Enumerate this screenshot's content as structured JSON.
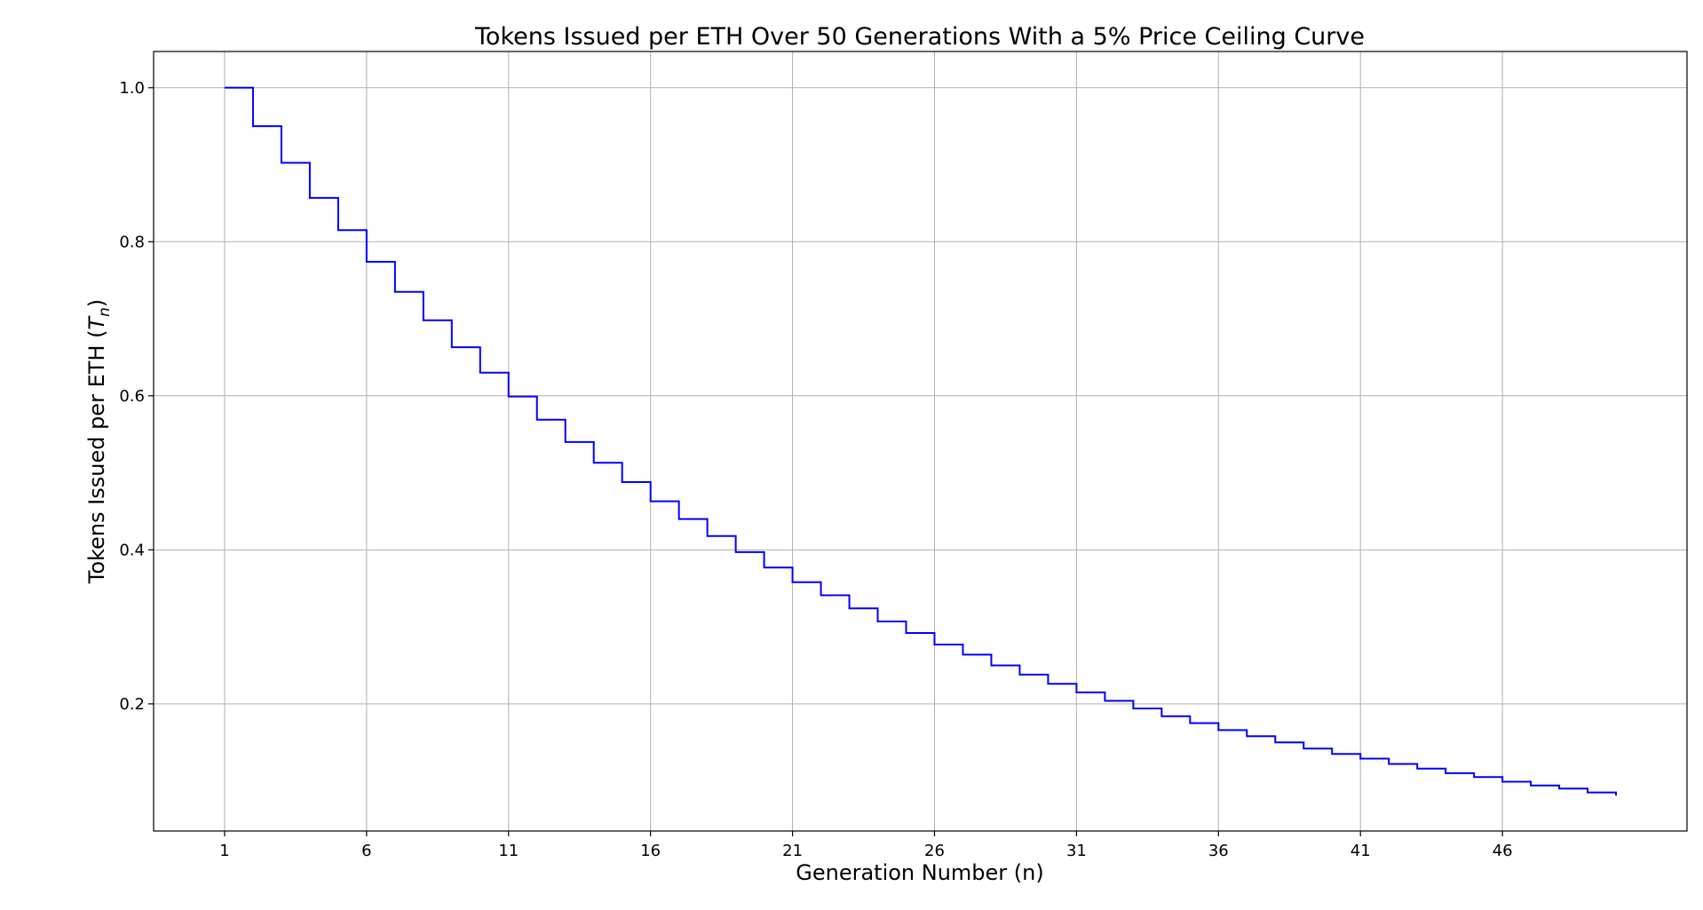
{
  "chart_data": {
    "type": "line",
    "drawstyle": "steps-post",
    "title": "Tokens Issued per ETH Over 50 Generations With a 5% Price Ceiling Curve",
    "xlabel": "Generation Number (n)",
    "ylabel_text": "Tokens Issued per ETH (",
    "ylabel_symbol": "T",
    "ylabel_subscript": "n",
    "ylabel_close": ")",
    "xlim": [
      -1.5,
      52.5
    ],
    "ylim": [
      0.035,
      1.047
    ],
    "x_ticks": [
      1,
      6,
      11,
      16,
      21,
      26,
      31,
      36,
      41,
      46
    ],
    "x_tick_labels": [
      "1",
      "6",
      "11",
      "16",
      "21",
      "26",
      "31",
      "36",
      "41",
      "46"
    ],
    "y_ticks": [
      0.2,
      0.4,
      0.6,
      0.8,
      1.0
    ],
    "y_tick_labels": [
      "0.2",
      "0.4",
      "0.6",
      "0.8",
      "1.0"
    ],
    "grid": true,
    "legend": "none",
    "series": [
      {
        "color": "#0000ff",
        "x": [
          1,
          2,
          3,
          4,
          5,
          6,
          7,
          8,
          9,
          10,
          11,
          12,
          13,
          14,
          15,
          16,
          17,
          18,
          19,
          20,
          21,
          22,
          23,
          24,
          25,
          26,
          27,
          28,
          29,
          30,
          31,
          32,
          33,
          34,
          35,
          36,
          37,
          38,
          39,
          40,
          41,
          42,
          43,
          44,
          45,
          46,
          47,
          48,
          49,
          50
        ],
        "values": [
          1.0,
          0.95,
          0.9025,
          0.857,
          0.815,
          0.774,
          0.735,
          0.698,
          0.663,
          0.63,
          0.599,
          0.569,
          0.54,
          0.513,
          0.488,
          0.463,
          0.44,
          0.418,
          0.397,
          0.377,
          0.358,
          0.341,
          0.324,
          0.307,
          0.292,
          0.277,
          0.264,
          0.25,
          0.238,
          0.226,
          0.215,
          0.204,
          0.194,
          0.184,
          0.175,
          0.166,
          0.158,
          0.15,
          0.142,
          0.135,
          0.129,
          0.122,
          0.116,
          0.11,
          0.105,
          0.099,
          0.094,
          0.09,
          0.085,
          0.081
        ]
      }
    ]
  }
}
